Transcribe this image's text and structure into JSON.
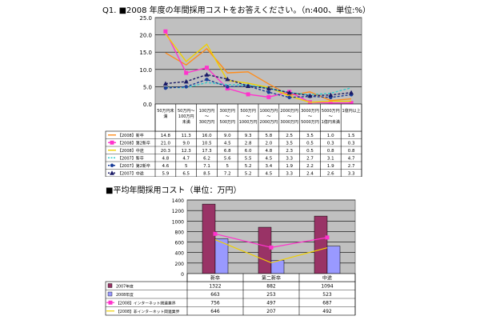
{
  "section1": {
    "title": "Q1. ■2008 年度の年間採用コストをお答えください。（n:400、単位:%）"
  },
  "section2": {
    "title": "■平均年間採用コスト（単位：万円）"
  },
  "chart_data": [
    {
      "type": "line",
      "ylim": [
        0,
        25
      ],
      "yticks": [
        "0.0",
        "5.0",
        "10.0",
        "15.0",
        "20.0",
        "25.0"
      ],
      "grid": true,
      "legend": "table",
      "categories": [
        [
          "50万円未",
          "満"
        ],
        [
          "50万円～",
          "100万円",
          "未満"
        ],
        [
          "100万円",
          "～",
          "300万円"
        ],
        [
          "300万円",
          "～",
          "500万円"
        ],
        [
          "500万円",
          "～",
          "1000万円"
        ],
        [
          "1000万円",
          "～",
          "2000万円"
        ],
        [
          "2000万円",
          "～",
          "3000万円"
        ],
        [
          "3000万円",
          "～",
          "5000万円"
        ],
        [
          "5000万円",
          "～",
          "1億円未満"
        ],
        [
          "1億円以上"
        ]
      ],
      "series": [
        {
          "name": "【2008】新卒",
          "color": "#ff8c1a",
          "dashed": false,
          "marker": "none",
          "values": [
            14.8,
            11.3,
            16.0,
            9.0,
            9.3,
            5.8,
            2.5,
            3.5,
            1.0,
            1.5
          ],
          "labels": [
            "14.8",
            "11.3",
            "16.0",
            "9.0",
            "9.3",
            "5.8",
            "2.5",
            "3.5",
            "1.0",
            "1.5"
          ]
        },
        {
          "name": "【2008】第2新卒",
          "color": "#ff33cc",
          "dashed": false,
          "marker": "square",
          "values": [
            21.0,
            9.0,
            10.5,
            4.5,
            2.8,
            2.0,
            3.5,
            0.5,
            0.3,
            0.3
          ],
          "labels": [
            "21.0",
            "9.0",
            "10.5",
            "4.5",
            "2.8",
            "2.0",
            "3.5",
            "0.5",
            "0.3",
            "0.3"
          ]
        },
        {
          "name": "【2008】中途",
          "color": "#f0d000",
          "dashed": false,
          "marker": "none",
          "values": [
            20.3,
            12.3,
            17.3,
            6.8,
            6.0,
            4.8,
            2.3,
            0.5,
            0.8,
            0.8
          ],
          "labels": [
            "20.3",
            "12.3",
            "17.3",
            "6.8",
            "6.0",
            "4.8",
            "2.3",
            "0.5",
            "0.8",
            "0.8"
          ]
        },
        {
          "name": "【2007】新卒",
          "color": "#33cccc",
          "dashed": true,
          "marker": "none",
          "values": [
            4.8,
            4.7,
            6.2,
            5.6,
            5.5,
            4.5,
            3.3,
            2.7,
            3.1,
            4.7
          ],
          "labels": [
            "4.8",
            "4.7",
            "6.2",
            "5.6",
            "5.5",
            "4.5",
            "3.3",
            "2.7",
            "3.1",
            "4.7"
          ]
        },
        {
          "name": "【2007】第2新卒",
          "color": "#1a3d99",
          "dashed": true,
          "marker": "dot",
          "values": [
            4.6,
            5.0,
            7.1,
            5.0,
            5.2,
            3.4,
            1.9,
            2.2,
            1.9,
            2.7
          ],
          "labels": [
            "4.6",
            "5",
            "7.1",
            "5",
            "5.2",
            "3.4",
            "1.9",
            "2.2",
            "1.9",
            "2.7"
          ]
        },
        {
          "name": "【2007】中途",
          "color": "#1a1a66",
          "dashed": true,
          "marker": "triangle",
          "values": [
            5.9,
            6.5,
            8.5,
            7.2,
            5.2,
            4.5,
            3.3,
            2.4,
            2.6,
            3.3
          ],
          "labels": [
            "5.9",
            "6.5",
            "8.5",
            "7.2",
            "5.2",
            "4.5",
            "3.3",
            "2.4",
            "2.6",
            "3.3"
          ]
        }
      ]
    },
    {
      "type": "bar",
      "ylim": [
        0,
        1400
      ],
      "yticks": [
        "0",
        "200",
        "400",
        "600",
        "800",
        "1000",
        "1200",
        "1400"
      ],
      "grid": true,
      "legend": "table",
      "categories": [
        "新卒",
        "第二新卒",
        "中途"
      ],
      "series": [
        {
          "name": "2007年度",
          "kind": "bar",
          "color": "#993366",
          "values": [
            1322,
            882,
            1094
          ]
        },
        {
          "name": "2008年度",
          "kind": "bar",
          "color": "#9999ff",
          "values": [
            663,
            253,
            523
          ]
        },
        {
          "name": "【2008】インターネット関連業界",
          "kind": "line",
          "color": "#ff33cc",
          "marker": "square",
          "values": [
            756,
            497,
            687
          ]
        },
        {
          "name": "【2008】非インターネット関連業界",
          "kind": "line",
          "color": "#f0d000",
          "marker": "none",
          "values": [
            646,
            207,
            492
          ]
        }
      ]
    }
  ]
}
